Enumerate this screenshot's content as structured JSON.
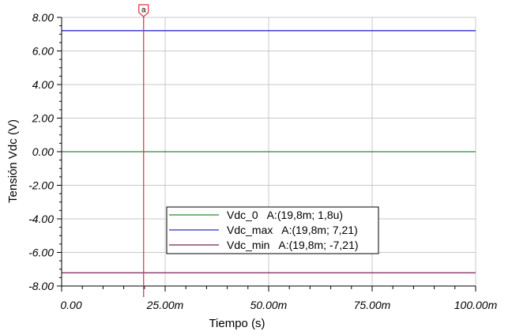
{
  "chart_data": {
    "type": "line",
    "xlabel": "Tiempo (s)",
    "ylabel": "Tensión Vdc (V)",
    "xlim": [
      0,
      0.1
    ],
    "ylim": [
      -8,
      8
    ],
    "x_ticks": [
      {
        "value": 0,
        "label": "0.00"
      },
      {
        "value": 0.025,
        "label": "25.00m"
      },
      {
        "value": 0.05,
        "label": "50.00m"
      },
      {
        "value": 0.075,
        "label": "75.00m"
      },
      {
        "value": 0.1,
        "label": "100.00m"
      }
    ],
    "y_ticks": [
      {
        "value": 8,
        "label": "8.00"
      },
      {
        "value": 6,
        "label": "6.00"
      },
      {
        "value": 4,
        "label": "4.00"
      },
      {
        "value": 2,
        "label": "2.00"
      },
      {
        "value": 0,
        "label": "0.00"
      },
      {
        "value": -2,
        "label": "-2.00"
      },
      {
        "value": -4,
        "label": "-4.00"
      },
      {
        "value": -6,
        "label": "-6.00"
      },
      {
        "value": -8,
        "label": "-8.00"
      }
    ],
    "grid": true,
    "series": [
      {
        "name": "Vdc_0",
        "color": "#2e8b2e",
        "x": [
          0,
          0.1
        ],
        "y": [
          1.8e-06,
          1.8e-06
        ],
        "legend": "Vdc_0   A:(19,8m; 1,8u)"
      },
      {
        "name": "Vdc_max",
        "color": "#2b2bd0",
        "x": [
          0,
          0.1
        ],
        "y": [
          7.21,
          7.21
        ],
        "legend": "Vdc_max   A:(19,8m; 7,21)"
      },
      {
        "name": "Vdc_min",
        "color": "#7a1f5a",
        "x": [
          0,
          0.1
        ],
        "y": [
          -7.21,
          -7.21
        ],
        "legend": "Vdc_min   A:(19,8m; -7,21)"
      }
    ],
    "cursor": {
      "label": "a",
      "x": 0.0198,
      "color": "#e0303a"
    },
    "legend_position": "bottom-center"
  }
}
